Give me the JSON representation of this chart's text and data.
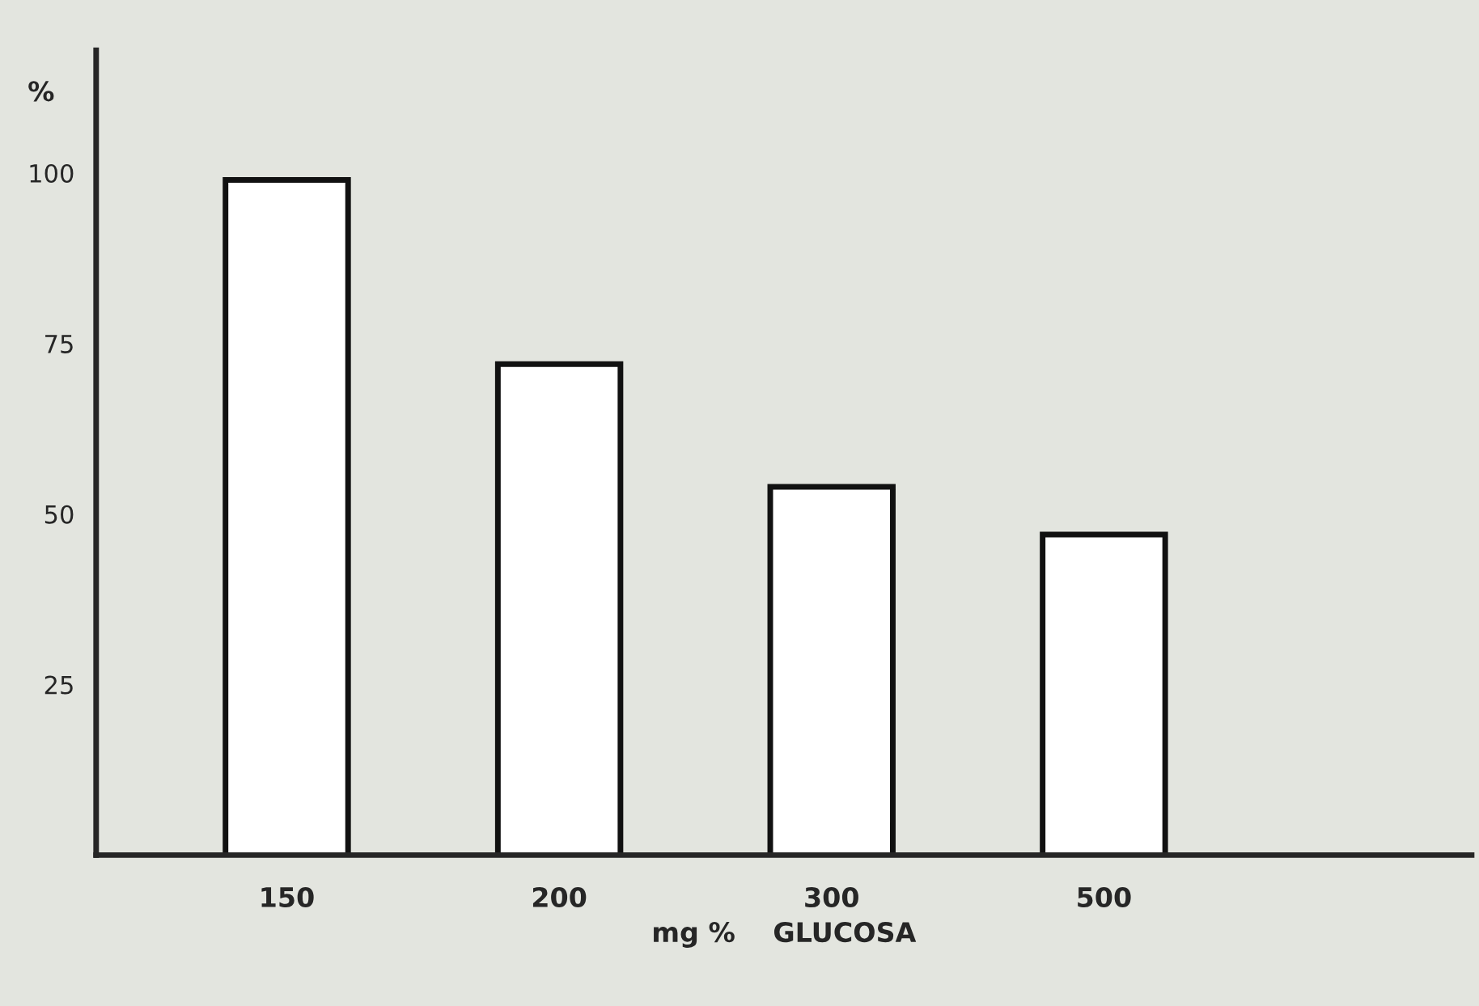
{
  "chart_data": {
    "type": "bar",
    "categories": [
      "150",
      "200",
      "300",
      "500"
    ],
    "values": [
      99,
      72,
      54,
      47
    ],
    "color": "#ffffff",
    "xlabel": "mg %    GLUCOSA",
    "ylabel": "%",
    "ylim": [
      0,
      118
    ],
    "yticks": [
      25,
      50,
      75,
      100
    ],
    "grid": false,
    "legend": false
  }
}
